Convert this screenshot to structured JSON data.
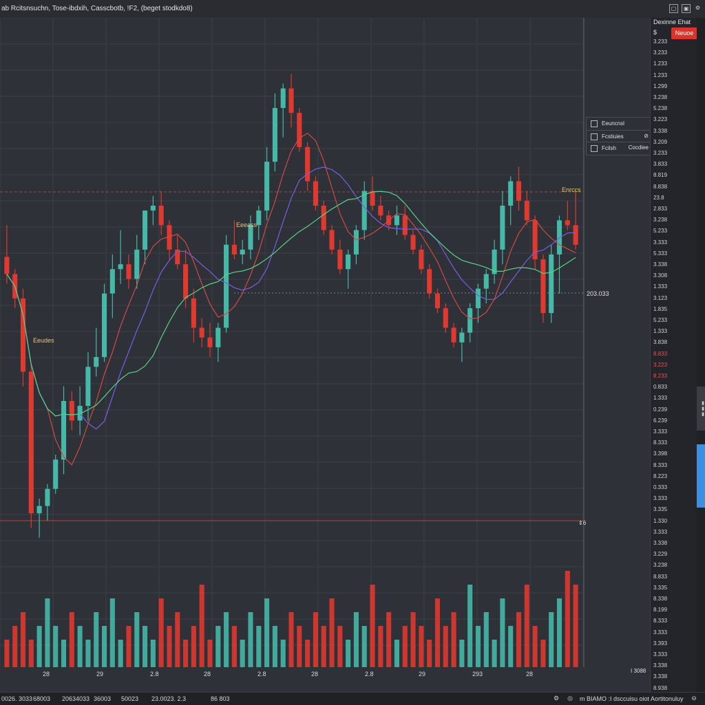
{
  "window": {
    "title": "ab Rcitsnsuchn,   Tose-ibdxih,   Casscbotb, !F2,   (beget stodkdo8)",
    "buttons": [
      "▢",
      "▣",
      "⚙",
      "▤"
    ]
  },
  "axis_header": {
    "title": "Dexinne Ehat",
    "sub": "$",
    "lock": "⇕",
    "highlight": "Neuoe"
  },
  "price_ticks": [
    {
      "t": "3.233"
    },
    {
      "t": "3.233"
    },
    {
      "t": "1.233"
    },
    {
      "t": "1.233"
    },
    {
      "t": "1.299"
    },
    {
      "t": "3.238"
    },
    {
      "t": "5.238"
    },
    {
      "t": "3.223"
    },
    {
      "t": "3.338"
    },
    {
      "t": "3.209"
    },
    {
      "t": "3.233"
    },
    {
      "t": "3.833"
    },
    {
      "t": "8.819"
    },
    {
      "t": "8.838"
    },
    {
      "t": "23.8"
    },
    {
      "t": "2.833"
    },
    {
      "t": "3.238"
    },
    {
      "t": "5.233"
    },
    {
      "t": "3.333"
    },
    {
      "t": "5.333"
    },
    {
      "t": "3.338"
    },
    {
      "t": "3.308"
    },
    {
      "t": "1.333"
    },
    {
      "t": "3.123"
    },
    {
      "t": "1.835"
    },
    {
      "t": "5.233"
    },
    {
      "t": "1.333"
    },
    {
      "t": "3.838"
    },
    {
      "t": "8.833",
      "red": true
    },
    {
      "t": "3.223",
      "red": true
    },
    {
      "t": "8.233",
      "red": true
    },
    {
      "t": "0.833"
    },
    {
      "t": "1.333"
    },
    {
      "t": "0.239"
    },
    {
      "t": "6.239"
    },
    {
      "t": "3.333"
    },
    {
      "t": "8.333"
    },
    {
      "t": "3.398"
    },
    {
      "t": "8.333"
    },
    {
      "t": "8.223"
    },
    {
      "t": "0.333"
    },
    {
      "t": "3.333"
    },
    {
      "t": "3.335"
    },
    {
      "t": "1.330"
    },
    {
      "t": "3.333"
    },
    {
      "t": "3.338"
    },
    {
      "t": "3.229"
    },
    {
      "t": "3.238"
    },
    {
      "t": "8.833"
    },
    {
      "t": "3.335"
    },
    {
      "t": "8.338"
    },
    {
      "t": "8.199"
    },
    {
      "t": "8.333"
    },
    {
      "t": "3.333"
    },
    {
      "t": "3.393"
    },
    {
      "t": "3.333"
    },
    {
      "t": "3.338"
    },
    {
      "t": "3.338"
    },
    {
      "t": "8.938"
    }
  ],
  "legend": [
    {
      "label": "Eeuncnsl",
      "extra": ""
    },
    {
      "label": "Fcstiuies",
      "extra": "⊘"
    },
    {
      "label": "Fcilsh",
      "extra": "Cocdiee"
    }
  ],
  "chart_labels": {
    "label_a": "Eeudes",
    "label_b": "Eeeass",
    "label_c": "Enrccs",
    "price_mark": "203.033",
    "bottom_mark": "⇕6"
  },
  "x_ticks": [
    "28",
    "29",
    "2.8",
    "28",
    "2.8",
    "28",
    "2.8",
    "29",
    "293",
    "28"
  ],
  "x_corner": "I 3088",
  "bottom_bar": {
    "left": [
      "0026. 3033",
      "68003",
      "20634033",
      "36003",
      "50023",
      "23.0023. 2.3",
      "86 803"
    ],
    "right": "m BIAMO :I dsccuisu oiot Aortitonuluy"
  },
  "colors": {
    "up": "#45b8a8",
    "down": "#e0392f",
    "bg": "#2f3138",
    "grid": "#3d4047",
    "accent": "#3f8fe0"
  },
  "chart_data": {
    "type": "candlestick",
    "series": [
      {
        "name": "",
        "color": "#e0392f",
        "kind": "ohlc"
      }
    ],
    "candles": [
      {
        "o": 5.95,
        "h": 6.6,
        "l": 5.4,
        "c": 5.6
      },
      {
        "o": 5.6,
        "h": 5.7,
        "l": 4.9,
        "c": 5.1
      },
      {
        "o": 5.1,
        "h": 5.3,
        "l": 3.3,
        "c": 3.6
      },
      {
        "o": 3.6,
        "h": 3.75,
        "l": 0.4,
        "c": 0.7
      },
      {
        "o": 0.7,
        "h": 1.0,
        "l": 0.2,
        "c": 0.85
      },
      {
        "o": 0.85,
        "h": 1.3,
        "l": 0.55,
        "c": 1.2
      },
      {
        "o": 1.2,
        "h": 1.9,
        "l": 1.1,
        "c": 1.8
      },
      {
        "o": 1.8,
        "h": 3.3,
        "l": 1.5,
        "c": 3.0
      },
      {
        "o": 3.0,
        "h": 3.2,
        "l": 2.4,
        "c": 2.6
      },
      {
        "o": 2.6,
        "h": 3.3,
        "l": 2.3,
        "c": 2.9
      },
      {
        "o": 2.9,
        "h": 4.0,
        "l": 2.6,
        "c": 3.7
      },
      {
        "o": 3.7,
        "h": 4.5,
        "l": 3.5,
        "c": 3.9
      },
      {
        "o": 3.9,
        "h": 5.4,
        "l": 3.8,
        "c": 5.2
      },
      {
        "o": 5.2,
        "h": 6.0,
        "l": 4.7,
        "c": 5.7
      },
      {
        "o": 5.7,
        "h": 6.5,
        "l": 5.4,
        "c": 5.8
      },
      {
        "o": 5.8,
        "h": 6.0,
        "l": 5.3,
        "c": 5.5
      },
      {
        "o": 5.5,
        "h": 6.4,
        "l": 5.3,
        "c": 6.1
      },
      {
        "o": 6.1,
        "h": 6.9,
        "l": 5.8,
        "c": 6.9
      },
      {
        "o": 6.9,
        "h": 7.2,
        "l": 6.6,
        "c": 7.0
      },
      {
        "o": 7.0,
        "h": 7.3,
        "l": 6.4,
        "c": 6.6
      },
      {
        "o": 6.6,
        "h": 6.7,
        "l": 5.9,
        "c": 6.1
      },
      {
        "o": 6.1,
        "h": 6.4,
        "l": 5.7,
        "c": 5.8
      },
      {
        "o": 5.8,
        "h": 6.1,
        "l": 4.9,
        "c": 5.1
      },
      {
        "o": 5.1,
        "h": 5.3,
        "l": 4.2,
        "c": 4.5
      },
      {
        "o": 4.5,
        "h": 4.7,
        "l": 4.1,
        "c": 4.3
      },
      {
        "o": 4.3,
        "h": 4.6,
        "l": 3.9,
        "c": 4.1
      },
      {
        "o": 4.1,
        "h": 4.6,
        "l": 3.8,
        "c": 4.5
      },
      {
        "o": 4.5,
        "h": 6.4,
        "l": 4.4,
        "c": 6.2
      },
      {
        "o": 6.2,
        "h": 6.7,
        "l": 5.9,
        "c": 6.0
      },
      {
        "o": 6.0,
        "h": 6.3,
        "l": 5.8,
        "c": 6.1
      },
      {
        "o": 6.1,
        "h": 6.8,
        "l": 5.9,
        "c": 6.6
      },
      {
        "o": 6.6,
        "h": 7.0,
        "l": 6.3,
        "c": 6.9
      },
      {
        "o": 6.9,
        "h": 8.2,
        "l": 6.7,
        "c": 7.9
      },
      {
        "o": 7.9,
        "h": 9.3,
        "l": 7.7,
        "c": 9.0
      },
      {
        "o": 9.0,
        "h": 9.5,
        "l": 8.4,
        "c": 9.4
      },
      {
        "o": 9.4,
        "h": 9.7,
        "l": 8.6,
        "c": 8.9
      },
      {
        "o": 8.9,
        "h": 9.0,
        "l": 8.1,
        "c": 8.2
      },
      {
        "o": 8.2,
        "h": 8.3,
        "l": 7.3,
        "c": 7.5
      },
      {
        "o": 7.5,
        "h": 7.6,
        "l": 6.9,
        "c": 7.0
      },
      {
        "o": 7.0,
        "h": 7.1,
        "l": 6.4,
        "c": 6.5
      },
      {
        "o": 6.5,
        "h": 6.6,
        "l": 6.0,
        "c": 6.1
      },
      {
        "o": 6.1,
        "h": 6.3,
        "l": 5.6,
        "c": 5.7
      },
      {
        "o": 5.7,
        "h": 6.1,
        "l": 5.3,
        "c": 6.0
      },
      {
        "o": 6.0,
        "h": 6.6,
        "l": 5.8,
        "c": 6.5
      },
      {
        "o": 6.5,
        "h": 7.5,
        "l": 6.3,
        "c": 7.3
      },
      {
        "o": 7.3,
        "h": 7.6,
        "l": 6.9,
        "c": 7.0
      },
      {
        "o": 7.0,
        "h": 7.2,
        "l": 6.7,
        "c": 6.8
      },
      {
        "o": 6.8,
        "h": 6.9,
        "l": 6.5,
        "c": 6.6
      },
      {
        "o": 6.6,
        "h": 7.0,
        "l": 6.4,
        "c": 6.8
      },
      {
        "o": 6.8,
        "h": 7.0,
        "l": 6.3,
        "c": 6.4
      },
      {
        "o": 6.4,
        "h": 6.5,
        "l": 6.0,
        "c": 6.1
      },
      {
        "o": 6.1,
        "h": 6.2,
        "l": 5.6,
        "c": 5.7
      },
      {
        "o": 5.7,
        "h": 5.8,
        "l": 5.1,
        "c": 5.2
      },
      {
        "o": 5.2,
        "h": 5.3,
        "l": 4.8,
        "c": 4.9
      },
      {
        "o": 4.9,
        "h": 5.0,
        "l": 4.4,
        "c": 4.5
      },
      {
        "o": 4.5,
        "h": 4.6,
        "l": 4.1,
        "c": 4.2
      },
      {
        "o": 4.2,
        "h": 4.5,
        "l": 3.8,
        "c": 4.4
      },
      {
        "o": 4.4,
        "h": 5.0,
        "l": 4.2,
        "c": 4.9
      },
      {
        "o": 4.9,
        "h": 5.4,
        "l": 4.6,
        "c": 5.3
      },
      {
        "o": 5.3,
        "h": 5.7,
        "l": 5.0,
        "c": 5.6
      },
      {
        "o": 5.6,
        "h": 6.3,
        "l": 5.4,
        "c": 6.1
      },
      {
        "o": 6.1,
        "h": 7.3,
        "l": 5.8,
        "c": 7.0
      },
      {
        "o": 7.0,
        "h": 7.6,
        "l": 6.6,
        "c": 7.5
      },
      {
        "o": 7.5,
        "h": 7.8,
        "l": 6.9,
        "c": 7.1
      },
      {
        "o": 7.1,
        "h": 7.3,
        "l": 6.6,
        "c": 6.7
      },
      {
        "o": 6.7,
        "h": 6.8,
        "l": 5.7,
        "c": 5.9
      },
      {
        "o": 5.9,
        "h": 6.0,
        "l": 4.6,
        "c": 4.8
      },
      {
        "o": 4.8,
        "h": 6.2,
        "l": 4.6,
        "c": 6.0
      },
      {
        "o": 6.0,
        "h": 6.8,
        "l": 5.2,
        "c": 6.7
      },
      {
        "o": 6.7,
        "h": 7.1,
        "l": 6.5,
        "c": 6.6
      },
      {
        "o": 6.6,
        "h": 7.3,
        "l": 6.1,
        "c": 6.2
      }
    ],
    "volumes": [
      2,
      3,
      4,
      2,
      3,
      5,
      3,
      2,
      4,
      3,
      2,
      4,
      3,
      5,
      2,
      3,
      4,
      3,
      2,
      5,
      3,
      4,
      2,
      3,
      6,
      2,
      3,
      4,
      3,
      2,
      4,
      3,
      5,
      3,
      2,
      4,
      3,
      2,
      4,
      3,
      5,
      3,
      2,
      4,
      3,
      6,
      3,
      4,
      2,
      3,
      4,
      3,
      2,
      5,
      3,
      4,
      2,
      6,
      3,
      4,
      2,
      5,
      3,
      4,
      6,
      3,
      2,
      4,
      5,
      7,
      6
    ],
    "ylim": [
      0,
      10
    ],
    "grid": true
  }
}
